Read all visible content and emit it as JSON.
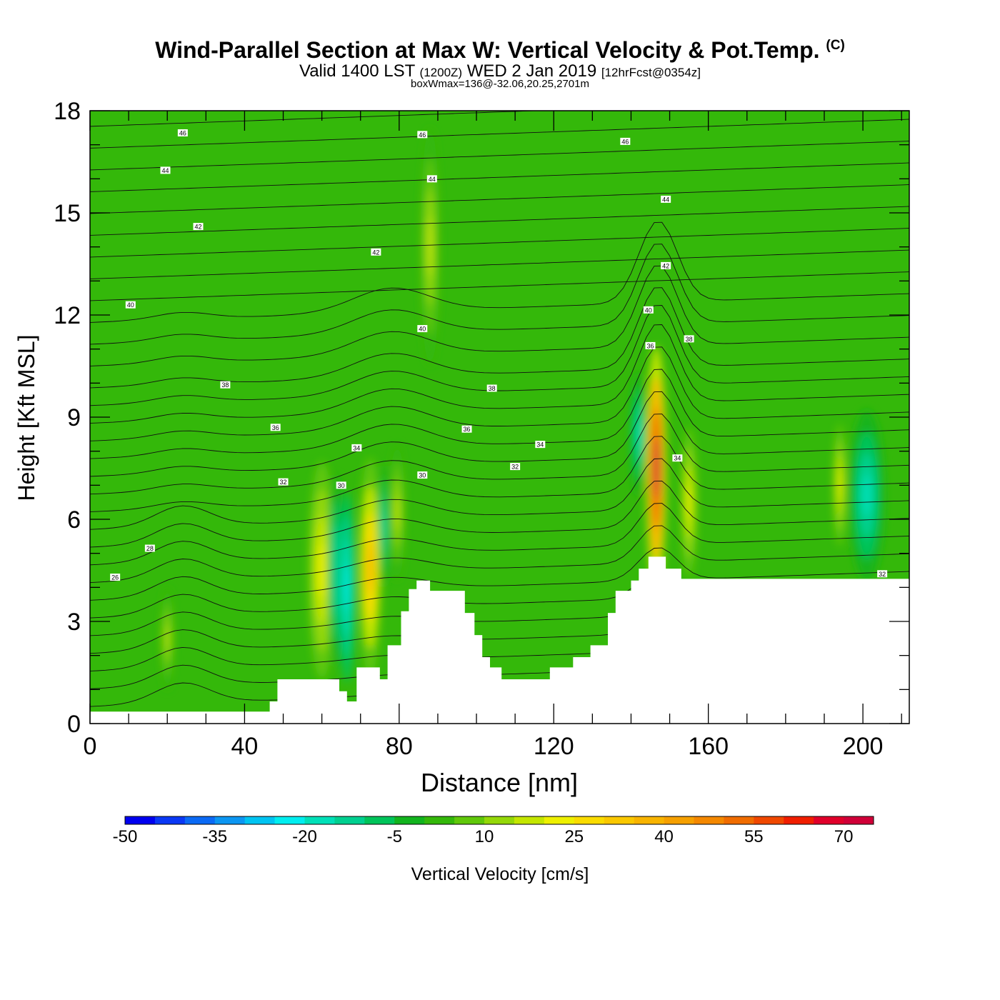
{
  "header": {
    "title": "Wind-Parallel Section at Max W: Vertical Velocity & Pot.Temp.",
    "copyright": "(C)",
    "valid_prefix": "Valid 1400 LST",
    "valid_utc": "(1200Z)",
    "valid_date": "WED 2 Jan 2019",
    "forecast": "[12hrFcst@0354z]",
    "boxwmax": "boxWmax=136@-32.06,20.25,2701m"
  },
  "chart_data": {
    "type": "heatmap",
    "xlabel": "Distance [nm]",
    "ylabel": "Height [Kft MSL]",
    "xlim": [
      0,
      212
    ],
    "ylim": [
      0,
      18
    ],
    "x_ticks": [
      0,
      40,
      80,
      120,
      160,
      200
    ],
    "y_ticks": [
      0,
      3,
      6,
      9,
      12,
      15,
      18
    ],
    "colorbar": {
      "title": "Vertical Velocity [cm/s]",
      "levels": [
        -50,
        -45,
        -40,
        -35,
        -30,
        -25,
        -20,
        -15,
        -10,
        -5,
        0,
        5,
        10,
        15,
        20,
        25,
        30,
        35,
        40,
        45,
        50,
        55,
        60,
        65,
        70,
        75
      ],
      "labels": [
        "-50",
        "-35",
        "-20",
        "-5",
        "10",
        "25",
        "40",
        "55",
        "70"
      ],
      "colors": [
        "#0000f0",
        "#0a38f5",
        "#0b6af5",
        "#0c96f2",
        "#00c4f2",
        "#00eef0",
        "#00e0b8",
        "#00d090",
        "#00c45a",
        "#12b41e",
        "#34b80a",
        "#60c80a",
        "#94d808",
        "#c4e600",
        "#eef000",
        "#fadc00",
        "#fac800",
        "#f8b400",
        "#f6a000",
        "#f48800",
        "#f06c00",
        "#f04800",
        "#f01e00",
        "#e0002a",
        "#d00038"
      ]
    },
    "terrain": [
      [
        0,
        0.35
      ],
      [
        46.5,
        0.35
      ],
      [
        46.5,
        0.65
      ],
      [
        48.5,
        0.65
      ],
      [
        48.5,
        1.3
      ],
      [
        64.5,
        1.3
      ],
      [
        64.5,
        0.95
      ],
      [
        66.5,
        0.95
      ],
      [
        66.5,
        0.65
      ],
      [
        69,
        0.65
      ],
      [
        69,
        1.65
      ],
      [
        75,
        1.65
      ],
      [
        75,
        1.3
      ],
      [
        77,
        1.3
      ],
      [
        77,
        2.3
      ],
      [
        80.5,
        2.3
      ],
      [
        80.5,
        3.3
      ],
      [
        82.5,
        3.3
      ],
      [
        82.5,
        3.95
      ],
      [
        84.5,
        3.95
      ],
      [
        84.5,
        4.2
      ],
      [
        88,
        4.2
      ],
      [
        88,
        3.9
      ],
      [
        97,
        3.9
      ],
      [
        97,
        3.25
      ],
      [
        99.5,
        3.25
      ],
      [
        99.5,
        2.6
      ],
      [
        101.5,
        2.6
      ],
      [
        101.5,
        1.95
      ],
      [
        103.5,
        1.95
      ],
      [
        103.5,
        1.65
      ],
      [
        106.5,
        1.65
      ],
      [
        106.5,
        1.3
      ],
      [
        119,
        1.3
      ],
      [
        119,
        1.65
      ],
      [
        125,
        1.65
      ],
      [
        125,
        1.95
      ],
      [
        129.5,
        1.95
      ],
      [
        129.5,
        2.3
      ],
      [
        134,
        2.3
      ],
      [
        134,
        3.25
      ],
      [
        136,
        3.25
      ],
      [
        136,
        3.9
      ],
      [
        140,
        3.9
      ],
      [
        140,
        4.2
      ],
      [
        142,
        4.2
      ],
      [
        142,
        4.55
      ],
      [
        144.5,
        4.55
      ],
      [
        144.5,
        4.9
      ],
      [
        149,
        4.9
      ],
      [
        149,
        4.55
      ],
      [
        153,
        4.55
      ],
      [
        153,
        4.25
      ],
      [
        212,
        4.25
      ]
    ],
    "wv_features": [
      {
        "x": 60,
        "y": 4.5,
        "rx": 3.5,
        "ry": 3.2,
        "value": 20
      },
      {
        "x": 63.5,
        "y": 4.5,
        "rx": 2.0,
        "ry": 2.8,
        "value": -15
      },
      {
        "x": 66.5,
        "y": 4.0,
        "rx": 2.0,
        "ry": 2.8,
        "value": -25
      },
      {
        "x": 72.5,
        "y": 4.6,
        "rx": 3.0,
        "ry": 3.2,
        "value": 35
      },
      {
        "x": 76,
        "y": 5.8,
        "rx": 1.2,
        "ry": 1.8,
        "value": -20
      },
      {
        "x": 79.5,
        "y": 6.2,
        "rx": 2.0,
        "ry": 2.0,
        "value": 15
      },
      {
        "x": 88,
        "y": 14.0,
        "rx": 2.5,
        "ry": 3.5,
        "value": 15
      },
      {
        "x": 146.5,
        "y": 7.5,
        "rx": 2.6,
        "ry": 3.6,
        "value": 70
      },
      {
        "x": 142,
        "y": 8.5,
        "rx": 2.0,
        "ry": 1.8,
        "value": -20
      },
      {
        "x": 155,
        "y": 6.5,
        "rx": 2.0,
        "ry": 2.2,
        "value": 20
      },
      {
        "x": 194,
        "y": 7.0,
        "rx": 1.6,
        "ry": 1.8,
        "value": 20
      },
      {
        "x": 201,
        "y": 6.7,
        "rx": 4.5,
        "ry": 2.5,
        "value": -20
      },
      {
        "x": 20,
        "y": 2.5,
        "rx": 1.6,
        "ry": 1.5,
        "value": 15
      }
    ],
    "theta_labels": [
      {
        "text": "46",
        "x": 24,
        "y": 17.35
      },
      {
        "text": "46",
        "x": 86,
        "y": 17.3
      },
      {
        "text": "46",
        "x": 138.5,
        "y": 17.1
      },
      {
        "text": "44",
        "x": 19.5,
        "y": 16.25
      },
      {
        "text": "44",
        "x": 88.5,
        "y": 16.0
      },
      {
        "text": "44",
        "x": 149,
        "y": 15.4
      },
      {
        "text": "42",
        "x": 28,
        "y": 14.6
      },
      {
        "text": "42",
        "x": 74,
        "y": 13.85
      },
      {
        "text": "42",
        "x": 149,
        "y": 13.45
      },
      {
        "text": "40",
        "x": 10.5,
        "y": 12.3
      },
      {
        "text": "40",
        "x": 86,
        "y": 11.6
      },
      {
        "text": "40",
        "x": 144.5,
        "y": 12.15
      },
      {
        "text": "38",
        "x": 35,
        "y": 9.95
      },
      {
        "text": "38",
        "x": 104,
        "y": 9.85
      },
      {
        "text": "38",
        "x": 155,
        "y": 11.3
      },
      {
        "text": "36",
        "x": 48,
        "y": 8.7
      },
      {
        "text": "36",
        "x": 97.5,
        "y": 8.65
      },
      {
        "text": "36",
        "x": 145,
        "y": 11.1
      },
      {
        "text": "34",
        "x": 69,
        "y": 8.1
      },
      {
        "text": "34",
        "x": 116.5,
        "y": 8.2
      },
      {
        "text": "34",
        "x": 152,
        "y": 7.8
      },
      {
        "text": "32",
        "x": 50,
        "y": 7.1
      },
      {
        "text": "32",
        "x": 110,
        "y": 7.55
      },
      {
        "text": "32",
        "x": 205,
        "y": 4.4
      },
      {
        "text": "30",
        "x": 65,
        "y": 7.0
      },
      {
        "text": "30",
        "x": 86,
        "y": 7.3
      },
      {
        "text": "28",
        "x": 15.5,
        "y": 5.15
      },
      {
        "text": "26",
        "x": 6.5,
        "y": 4.3
      }
    ]
  }
}
